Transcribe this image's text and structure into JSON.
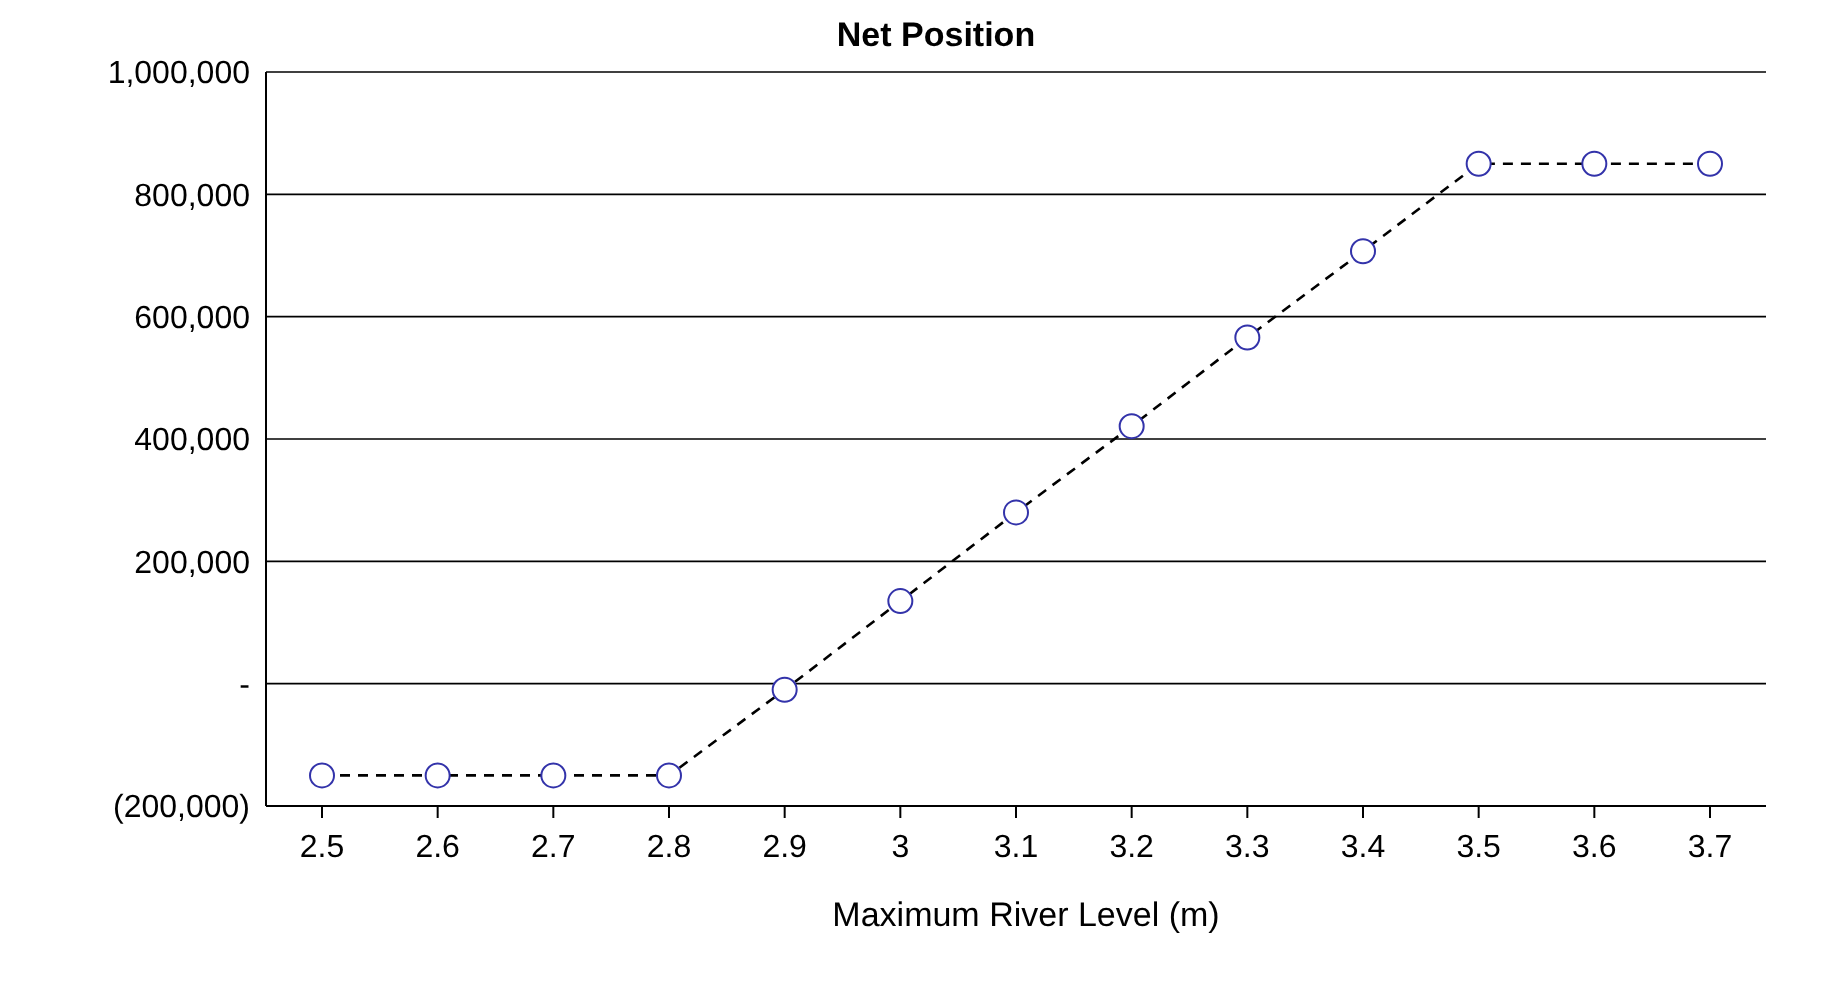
{
  "chart_data": {
    "type": "line",
    "title": "Net Position",
    "xlabel": "Maximum River Level (m)",
    "categories": [
      "2.5",
      "2.6",
      "2.7",
      "2.8",
      "2.9",
      "3",
      "3.1",
      "3.2",
      "3.3",
      "3.4",
      "3.5",
      "3.6",
      "3.7"
    ],
    "series": [
      {
        "color": "#000000",
        "values": [
          -150000,
          -150000,
          -150000,
          -150000,
          -10000,
          135000,
          280000,
          421000,
          566000,
          707000,
          850000,
          850000,
          850000
        ]
      }
    ],
    "ylim": [
      -200000,
      1000000
    ],
    "yticks": [
      {
        "value": -200000,
        "label": "(200,000)"
      },
      {
        "value": 0,
        "label": "-"
      },
      {
        "value": 200000,
        "label": "200,000"
      },
      {
        "value": 400000,
        "label": "400,000"
      },
      {
        "value": 600000,
        "label": "600,000"
      },
      {
        "value": 800000,
        "label": "800,000"
      },
      {
        "value": 1000000,
        "label": "1,000,000"
      }
    ],
    "grid": "y",
    "marker": "circle",
    "line_style": "dashed"
  }
}
